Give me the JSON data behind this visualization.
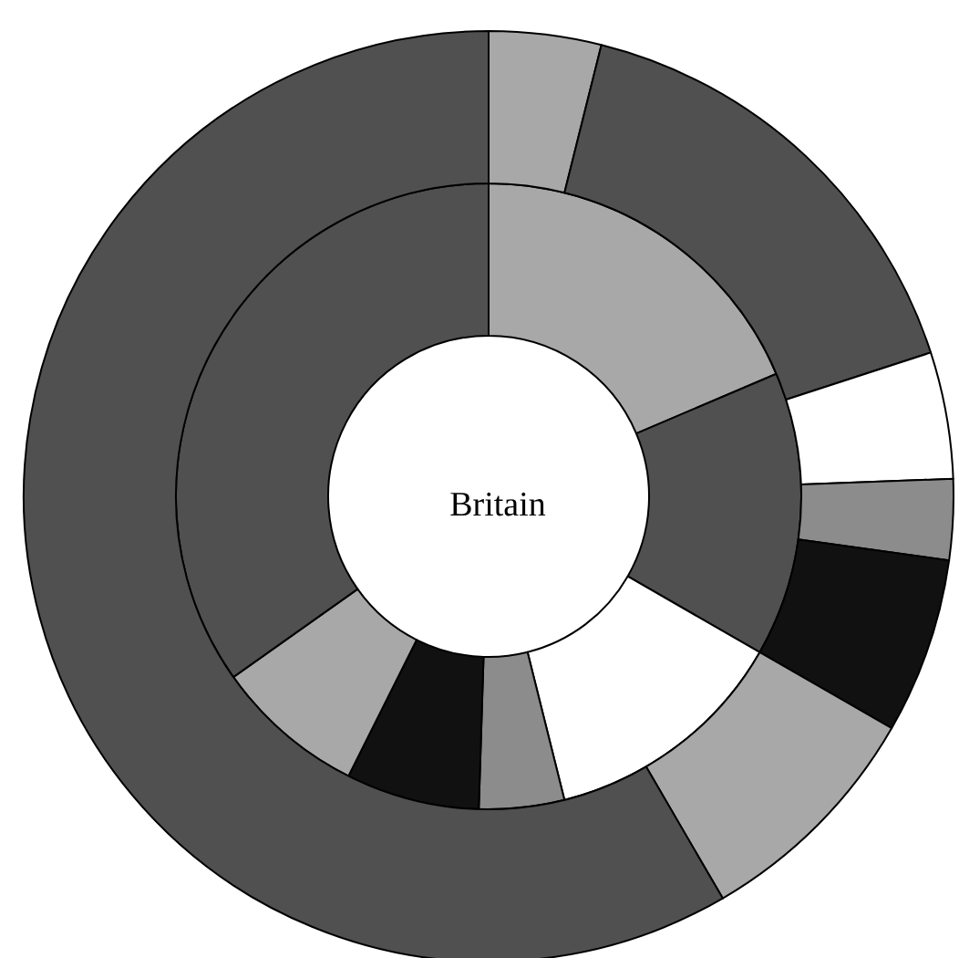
{
  "chart_data": {
    "type": "donut",
    "title": "Britain",
    "categories": [
      null,
      null,
      null,
      null,
      null,
      null,
      null
    ],
    "series": [
      {
        "values": [
          18.6,
          14.7,
          12.8,
          4.4,
          6.9,
          7.8,
          34.8
        ],
        "colors": [
          "#a8a8a8",
          "#505050",
          "#ffffff",
          "#8c8c8c",
          "#111111",
          "#a8a8a8",
          "#505050"
        ]
      },
      {
        "values": [
          3.9,
          16.1,
          4.4,
          2.8,
          6.1,
          8.3,
          58.4
        ],
        "colors": [
          "#a8a8a8",
          "#505050",
          "#ffffff",
          "#8c8c8c",
          "#111111",
          "#a8a8a8",
          "#505050"
        ]
      }
    ]
  }
}
